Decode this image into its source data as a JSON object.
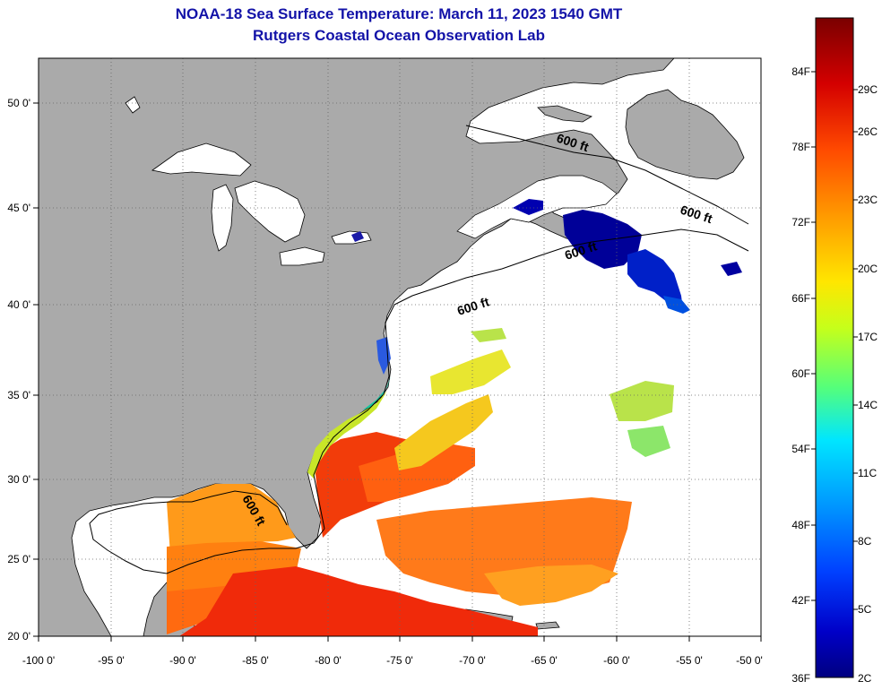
{
  "title": "NOAA-18 Sea Surface Temperature:  March 11, 2023 1540 GMT",
  "subtitle": "Rutgers Coastal Ocean Observation Lab",
  "map": {
    "lon_ticks": [
      "-100 0'",
      "-95 0'",
      "-90 0'",
      "-85 0'",
      "-80 0'",
      "-75 0'",
      "-70 0'",
      "-65 0'",
      "-60 0'",
      "-55 0'",
      "-50 0'"
    ],
    "lat_ticks": [
      "50 0'",
      "45 0'",
      "40 0'",
      "35 0'",
      "30 0'",
      "25 0'",
      "20 0'"
    ],
    "contour_label": "600 ft",
    "colors": {
      "land": "#aaaaaa",
      "ocean_nodata": "#ffffff",
      "grid": "#666666"
    }
  },
  "colorbar": {
    "fahrenheit": [
      "84F",
      "78F",
      "72F",
      "66F",
      "60F",
      "54F",
      "48F",
      "42F",
      "36F"
    ],
    "celsius": [
      "29C",
      "26C",
      "23C",
      "20C",
      "17C",
      "14C",
      "11C",
      "8C",
      "5C",
      "2C"
    ],
    "stops": [
      "#7a0000",
      "#d40000",
      "#ff4a00",
      "#ff9a00",
      "#ffe600",
      "#c6ff1a",
      "#55ff7a",
      "#00e6ff",
      "#0096ff",
      "#0040ff",
      "#0000c8",
      "#000080"
    ]
  }
}
